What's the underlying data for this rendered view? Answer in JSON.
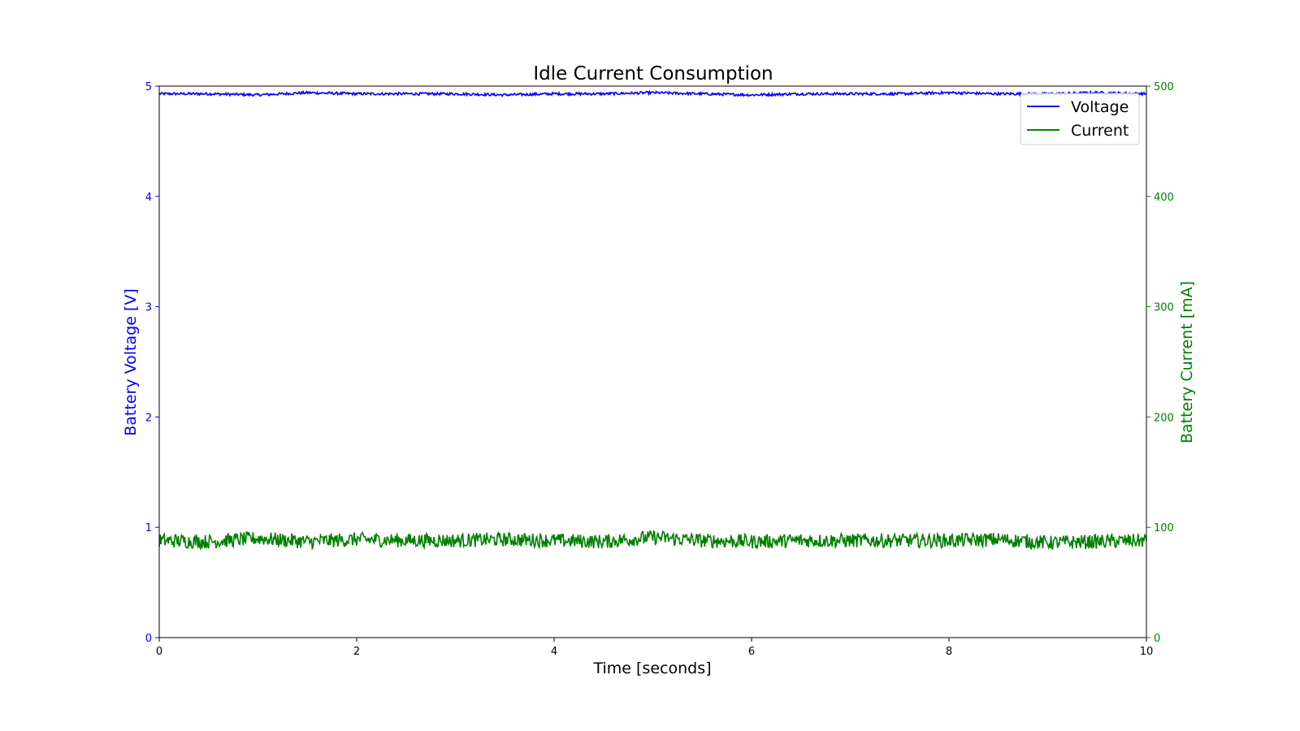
{
  "chart_data": {
    "type": "line",
    "title": "Idle Current Consumption",
    "xlabel": "Time [seconds]",
    "ylabel_left": "Battery Voltage [V]",
    "ylabel_right": "Battery Current [mA]",
    "xlim": [
      0,
      10
    ],
    "ylim_left": [
      0,
      5
    ],
    "ylim_right": [
      0,
      500
    ],
    "x_ticks": [
      "0",
      "2",
      "4",
      "6",
      "8",
      "10"
    ],
    "y_left_ticks": [
      "0",
      "1",
      "2",
      "3",
      "4",
      "5"
    ],
    "y_right_ticks": [
      "0",
      "100",
      "200",
      "300",
      "400",
      "500"
    ],
    "grid": false,
    "legend_position": "top-right",
    "colors": {
      "voltage": "#0000ff",
      "current": "#008000",
      "axes": "#000000"
    },
    "series": [
      {
        "name": "Voltage",
        "axis": "left",
        "color": "#0000ff",
        "x": [
          0.0,
          0.5,
          1.0,
          1.5,
          2.0,
          2.5,
          3.0,
          3.5,
          4.0,
          4.5,
          5.0,
          5.5,
          6.0,
          6.5,
          7.0,
          7.5,
          8.0,
          8.5,
          9.0,
          9.5,
          10.0
        ],
        "values": [
          4.93,
          4.93,
          4.92,
          4.94,
          4.93,
          4.93,
          4.93,
          4.92,
          4.93,
          4.93,
          4.94,
          4.93,
          4.92,
          4.93,
          4.93,
          4.93,
          4.94,
          4.93,
          4.93,
          4.94,
          4.93
        ]
      },
      {
        "name": "Current",
        "axis": "right",
        "color": "#008000",
        "x": [
          0.0,
          0.5,
          1.0,
          1.5,
          2.0,
          2.5,
          3.0,
          3.5,
          4.0,
          4.5,
          5.0,
          5.5,
          6.0,
          6.5,
          7.0,
          7.5,
          8.0,
          8.5,
          9.0,
          9.5,
          10.0
        ],
        "values": [
          88,
          87,
          90,
          87,
          89,
          88,
          88,
          89,
          88,
          87,
          91,
          88,
          87,
          88,
          88,
          88,
          88,
          89,
          86,
          87,
          88
        ]
      }
    ]
  }
}
